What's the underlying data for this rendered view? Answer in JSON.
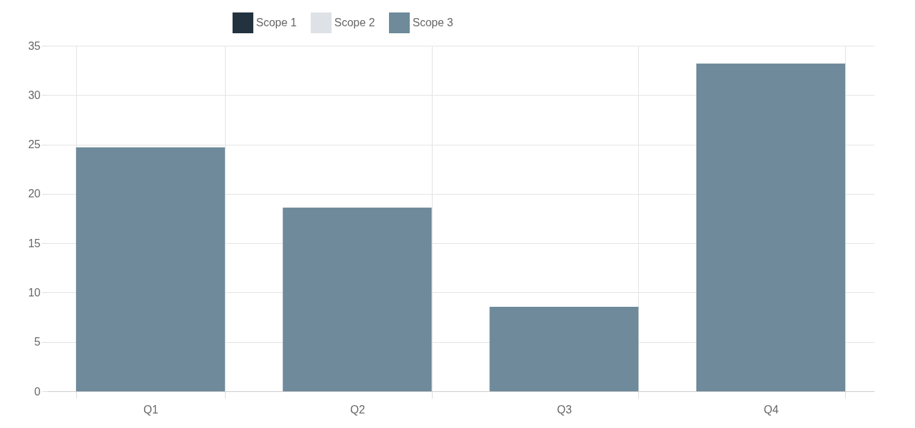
{
  "chart_data": {
    "type": "bar",
    "categories": [
      "Q1",
      "Q2",
      "Q3",
      "Q4"
    ],
    "series": [
      {
        "name": "Scope 1",
        "color": "#22333f",
        "values": [
          null,
          null,
          null,
          null
        ]
      },
      {
        "name": "Scope 2",
        "color": "#dee2e6",
        "values": [
          null,
          null,
          null,
          null
        ]
      },
      {
        "name": "Scope 3",
        "color": "#6e8a9b",
        "values": [
          24.7,
          18.6,
          8.55,
          33.2
        ]
      }
    ],
    "ylim": [
      0,
      35
    ],
    "yticks": [
      0,
      5,
      10,
      15,
      20,
      25,
      30,
      35
    ],
    "grid": true,
    "legend": "top"
  }
}
